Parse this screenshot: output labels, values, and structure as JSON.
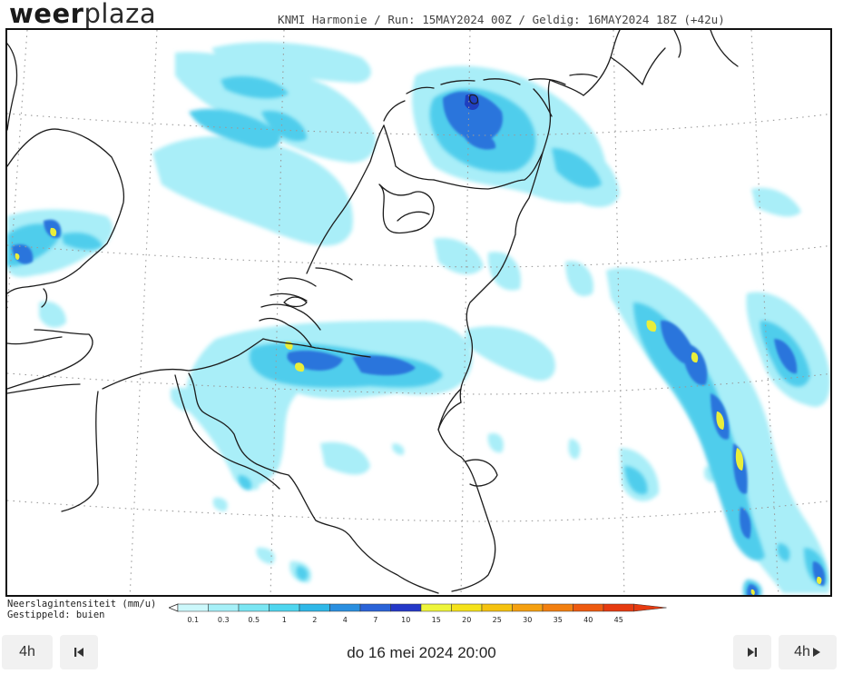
{
  "header": {
    "logo_part1": "weer",
    "logo_part2": "plaza",
    "run_info": "KNMI Harmonie / Run: 15MAY2024 00Z / Geldig: 16MAY2024 18Z (+42u)"
  },
  "legend": {
    "title_line1": "Neerslagintensiteit (mm/u)",
    "title_line2": "Gestippeld: buien",
    "classes": [
      {
        "value": "0.1",
        "color": "#ccf8fb"
      },
      {
        "value": "0.3",
        "color": "#a6f0f8"
      },
      {
        "value": "0.5",
        "color": "#7ae6f3"
      },
      {
        "value": "1",
        "color": "#4fd6ef"
      },
      {
        "value": "2",
        "color": "#2fb8e8"
      },
      {
        "value": "4",
        "color": "#2a8fe0"
      },
      {
        "value": "7",
        "color": "#2a63d8"
      },
      {
        "value": "10",
        "color": "#2438c8"
      },
      {
        "value": "15",
        "color": "#eef53a"
      },
      {
        "value": "20",
        "color": "#f5e21a"
      },
      {
        "value": "25",
        "color": "#f5c20f"
      },
      {
        "value": "30",
        "color": "#f5a010"
      },
      {
        "value": "35",
        "color": "#f27f10"
      },
      {
        "value": "40",
        "color": "#ee5a10"
      },
      {
        "value": "45",
        "color": "#e63a10"
      }
    ]
  },
  "navigation": {
    "back_step_label": "4h",
    "forward_step_label": "4h",
    "valid_time": "do 16 mei 2024 20:00"
  },
  "icons": {
    "prev": "skip-previous-icon",
    "next": "skip-next-icon",
    "forward": "play-arrow-icon"
  }
}
